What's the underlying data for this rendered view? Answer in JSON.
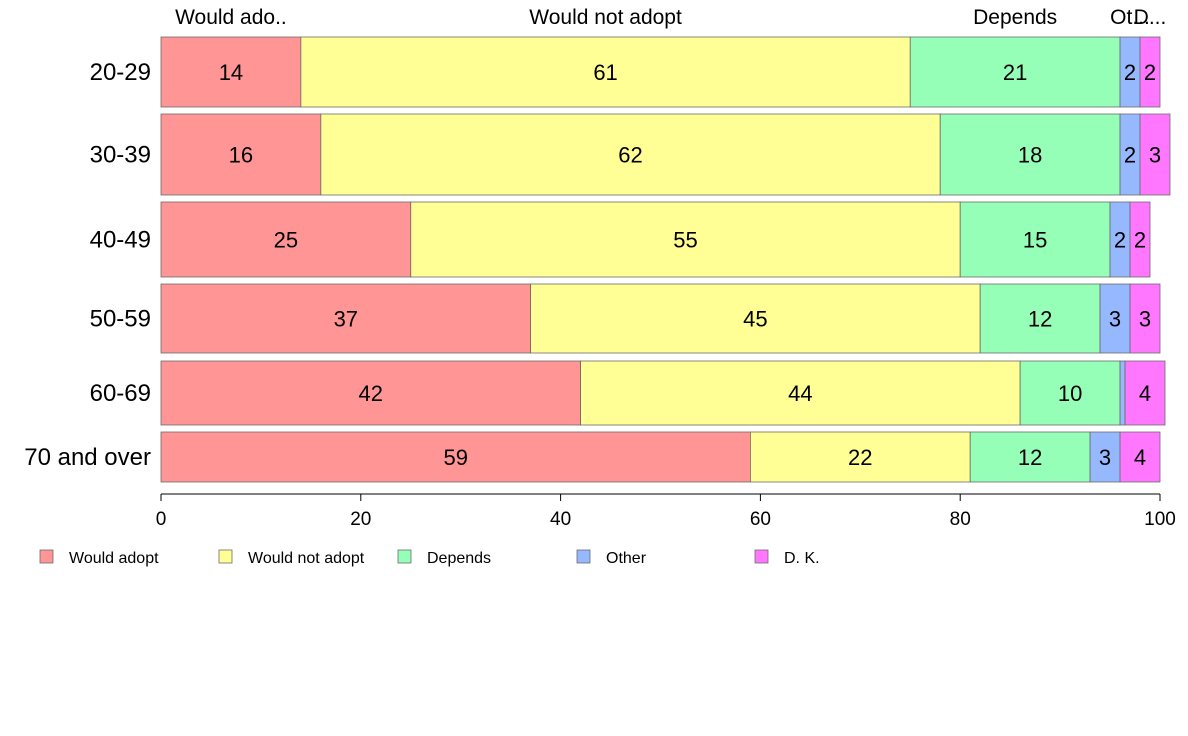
{
  "chart_data": {
    "type": "bar",
    "orientation": "horizontal",
    "stacked": true,
    "categories": [
      "20-29",
      "30-39",
      "40-49",
      "50-59",
      "60-69",
      "70 and over"
    ],
    "series": [
      {
        "name": "Would adopt",
        "color": "#FF9595",
        "values": [
          14,
          16,
          25,
          37,
          42,
          59
        ]
      },
      {
        "name": "Would not adopt",
        "color": "#FFFF95",
        "values": [
          61,
          62,
          55,
          45,
          44,
          22
        ]
      },
      {
        "name": "Depends",
        "color": "#95FFB8",
        "values": [
          21,
          18,
          15,
          12,
          10,
          12
        ]
      },
      {
        "name": "Other",
        "color": "#95B8FF",
        "values": [
          2,
          2,
          2,
          3,
          0.5,
          3
        ]
      },
      {
        "name": "D. K.",
        "color": "#FF77FF",
        "values": [
          2,
          3,
          2,
          3,
          4,
          4
        ]
      }
    ],
    "data_labels": [
      [
        "14",
        "61",
        "21",
        "2",
        "2"
      ],
      [
        "16",
        "62",
        "18",
        "2",
        "3"
      ],
      [
        "25",
        "55",
        "15",
        "2",
        "2"
      ],
      [
        "37",
        "45",
        "12",
        "3",
        "3"
      ],
      [
        "42",
        "44",
        "10",
        "",
        "4"
      ],
      [
        "59",
        "22",
        "12",
        "3",
        "4"
      ]
    ],
    "top_labels": [
      "Would ado..",
      "Would not adopt",
      "Depends",
      "Ot...",
      "D..."
    ],
    "xlim": [
      0,
      100
    ],
    "x_ticks": [
      0,
      20,
      40,
      60,
      80,
      100
    ],
    "x_tick_labels": [
      "0",
      "20",
      "40",
      "60",
      "80",
      "100"
    ],
    "grid": false,
    "legend_position": "bottom-left"
  }
}
